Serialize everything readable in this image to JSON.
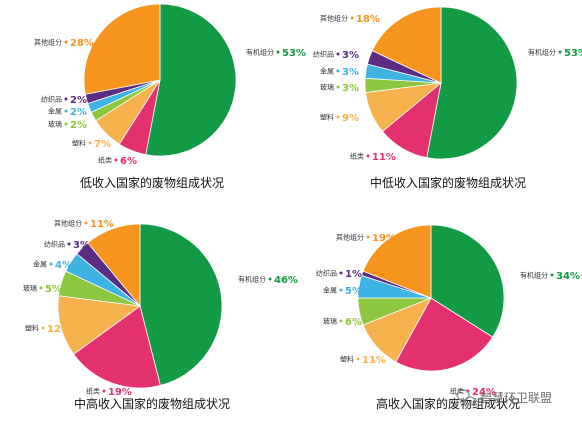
{
  "colors": {
    "有机组分": "#129a45",
    "纸类": "#e5306f",
    "塑料": "#f7b14d",
    "玻璃": "#8dc63f",
    "金属": "#3fb2e4",
    "纺织品": "#5a2d82",
    "其他组分": "#f7941d"
  },
  "watermark": {
    "icon": "wechat-icon",
    "text": "智慧环卫联盟"
  },
  "chart_data": [
    {
      "type": "pie",
      "title": "低收入国家的废物组成状况",
      "slices": [
        {
          "label": "有机组分",
          "value": 53,
          "pct": "53%"
        },
        {
          "label": "纸类",
          "value": 6,
          "pct": "6%"
        },
        {
          "label": "塑料",
          "value": 7,
          "pct": "7%"
        },
        {
          "label": "玻璃",
          "value": 2,
          "pct": "2%"
        },
        {
          "label": "金属",
          "value": 2,
          "pct": "2%"
        },
        {
          "label": "纺织品",
          "value": 2,
          "pct": "2%"
        },
        {
          "label": "其他组分",
          "value": 28,
          "pct": "28%"
        }
      ]
    },
    {
      "type": "pie",
      "title": "中低收入国家的废物组成状况",
      "slices": [
        {
          "label": "有机组分",
          "value": 53,
          "pct": "53%"
        },
        {
          "label": "纸类",
          "value": 11,
          "pct": "11%"
        },
        {
          "label": "塑料",
          "value": 9,
          "pct": "9%"
        },
        {
          "label": "玻璃",
          "value": 3,
          "pct": "3%"
        },
        {
          "label": "金属",
          "value": 3,
          "pct": "3%"
        },
        {
          "label": "纺织品",
          "value": 3,
          "pct": "3%"
        },
        {
          "label": "其他组分",
          "value": 18,
          "pct": "18%"
        }
      ]
    },
    {
      "type": "pie",
      "title": "中高收入国家的废物组成状况",
      "slices": [
        {
          "label": "有机组分",
          "value": 46,
          "pct": "46%"
        },
        {
          "label": "纸类",
          "value": 19,
          "pct": "19%"
        },
        {
          "label": "塑料",
          "value": 12,
          "pct": "12%"
        },
        {
          "label": "玻璃",
          "value": 5,
          "pct": "5%"
        },
        {
          "label": "金属",
          "value": 4,
          "pct": "4%"
        },
        {
          "label": "纺织品",
          "value": 3,
          "pct": "3%"
        },
        {
          "label": "其他组分",
          "value": 11,
          "pct": "11%"
        }
      ]
    },
    {
      "type": "pie",
      "title": "高收入国家的废物组成状况",
      "slices": [
        {
          "label": "有机组分",
          "value": 34,
          "pct": "34%"
        },
        {
          "label": "纸类",
          "value": 24,
          "pct": "24%"
        },
        {
          "label": "塑料",
          "value": 11,
          "pct": "11%"
        },
        {
          "label": "玻璃",
          "value": 6,
          "pct": "6%"
        },
        {
          "label": "金属",
          "value": 5,
          "pct": "5%"
        },
        {
          "label": "纺织品",
          "value": 1,
          "pct": "1%"
        },
        {
          "label": "其他组分",
          "value": 19,
          "pct": "19%"
        }
      ]
    }
  ]
}
